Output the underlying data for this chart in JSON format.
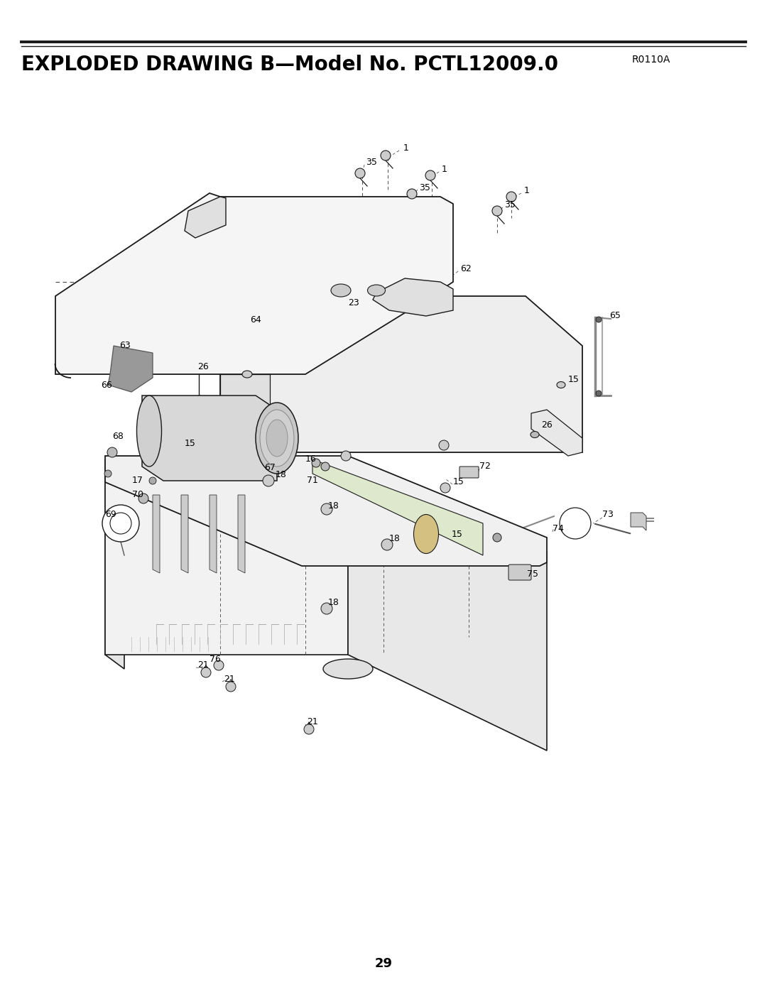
{
  "title_bold": "EXPLODED DRAWING B—Model No. PCTL12009.0",
  "subtitle": "R0110A",
  "page_number": "29",
  "background_color": "#ffffff",
  "line_color": "#1a1a1a",
  "title_fontsize": 20,
  "subtitle_fontsize": 10,
  "page_fontsize": 13,
  "figsize": [
    10.8,
    13.97
  ],
  "dpi": 100
}
